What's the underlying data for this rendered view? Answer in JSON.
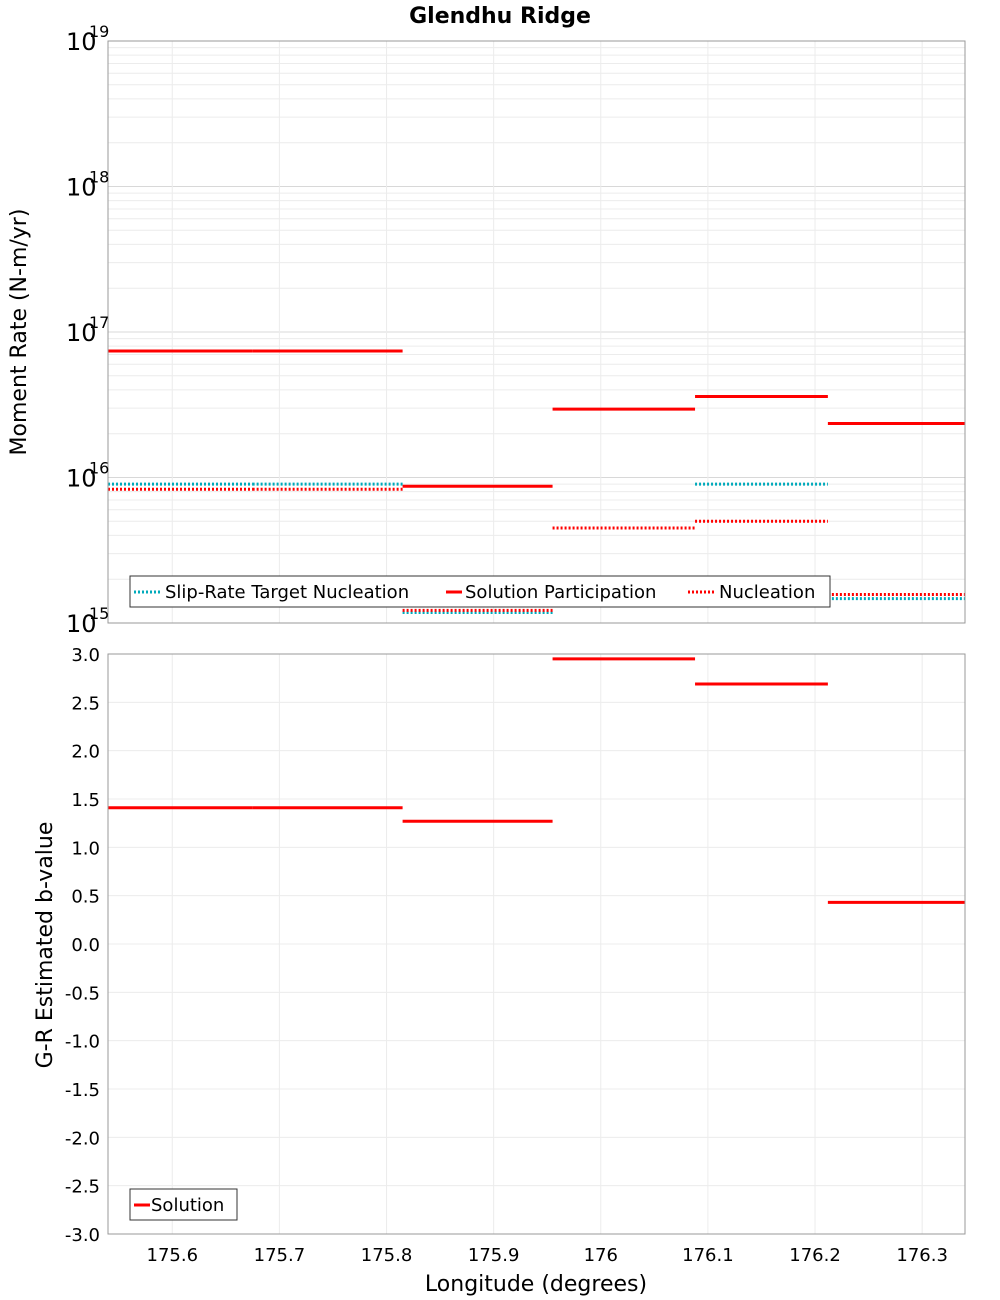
{
  "chart_data": [
    {
      "type": "line",
      "title": "Glendhu Ridge",
      "ylabel": "Moment Rate (N-m/yr)",
      "xlim": [
        175.54,
        176.34
      ],
      "ylim": [
        1000000000000000.0,
        1e+19
      ],
      "yscale": "log",
      "grid": true,
      "y_ticks": [
        {
          "base": "10",
          "exp": "15",
          "value": 1000000000000000.0
        },
        {
          "base": "10",
          "exp": "16",
          "value": 1e+16
        },
        {
          "base": "10",
          "exp": "17",
          "value": 1e+17
        },
        {
          "base": "10",
          "exp": "18",
          "value": 1e+18
        },
        {
          "base": "10",
          "exp": "19",
          "value": 1e+19
        }
      ],
      "legend_position": "bottom-left",
      "series": [
        {
          "name": "Slip-Rate Target Nucleation",
          "style": "dotted",
          "color": "#00aabb",
          "segments": [
            {
              "x": [
                175.54,
                175.675
              ],
              "y": 9000000000000000.0
            },
            {
              "x": [
                175.675,
                175.815
              ],
              "y": 9000000000000000.0
            },
            {
              "x": [
                175.815,
                175.955
              ],
              "y": 1180000000000000.0
            },
            {
              "x": [
                176.088,
                176.212
              ],
              "y": 9000000000000000.0
            },
            {
              "x": [
                176.212,
                176.34
              ],
              "y": 1470000000000000.0
            }
          ]
        },
        {
          "name": "Solution Participation",
          "style": "solid",
          "color": "#ff0000",
          "segments": [
            {
              "x": [
                175.54,
                175.675
              ],
              "y": 7.4e+16
            },
            {
              "x": [
                175.675,
                175.815
              ],
              "y": 7.4e+16
            },
            {
              "x": [
                175.815,
                175.955
              ],
              "y": 8700000000000000.0
            },
            {
              "x": [
                175.955,
                176.088
              ],
              "y": 2.95e+16
            },
            {
              "x": [
                176.088,
                176.212
              ],
              "y": 3.6e+16
            },
            {
              "x": [
                176.212,
                176.34
              ],
              "y": 2.35e+16
            }
          ]
        },
        {
          "name": "Nucleation",
          "style": "dotted",
          "color": "#ff0000",
          "segments": [
            {
              "x": [
                175.54,
                175.675
              ],
              "y": 8300000000000000.0
            },
            {
              "x": [
                175.675,
                175.815
              ],
              "y": 8300000000000000.0
            },
            {
              "x": [
                175.815,
                175.955
              ],
              "y": 1220000000000000.0
            },
            {
              "x": [
                175.955,
                176.088
              ],
              "y": 4500000000000000.0
            },
            {
              "x": [
                176.088,
                176.212
              ],
              "y": 5000000000000000.0
            },
            {
              "x": [
                176.212,
                176.34
              ],
              "y": 1570000000000000.0
            }
          ]
        }
      ]
    },
    {
      "type": "line",
      "xlabel": "Longitude (degrees)",
      "ylabel": "G-R Estimated b-value",
      "xlim": [
        175.54,
        176.34
      ],
      "ylim": [
        -3.0,
        3.0
      ],
      "yscale": "linear",
      "grid": true,
      "x_ticks": [
        "175.6",
        "175.7",
        "175.8",
        "175.9",
        "176",
        "176.1",
        "176.2",
        "176.3"
      ],
      "y_ticks": [
        "3.0",
        "2.5",
        "2.0",
        "1.5",
        "1.0",
        "0.5",
        "0.0",
        "-0.5",
        "-1.0",
        "-1.5",
        "-2.0",
        "-2.5",
        "-3.0"
      ],
      "legend_position": "bottom-left",
      "series": [
        {
          "name": "Solution",
          "style": "solid",
          "color": "#ff0000",
          "segments": [
            {
              "x": [
                175.54,
                175.675
              ],
              "y": 1.41
            },
            {
              "x": [
                175.675,
                175.815
              ],
              "y": 1.41
            },
            {
              "x": [
                175.815,
                175.955
              ],
              "y": 1.27
            },
            {
              "x": [
                175.955,
                176.088
              ],
              "y": 2.95
            },
            {
              "x": [
                176.088,
                176.212
              ],
              "y": 2.69
            },
            {
              "x": [
                176.212,
                176.34
              ],
              "y": 0.43
            }
          ]
        }
      ]
    }
  ]
}
